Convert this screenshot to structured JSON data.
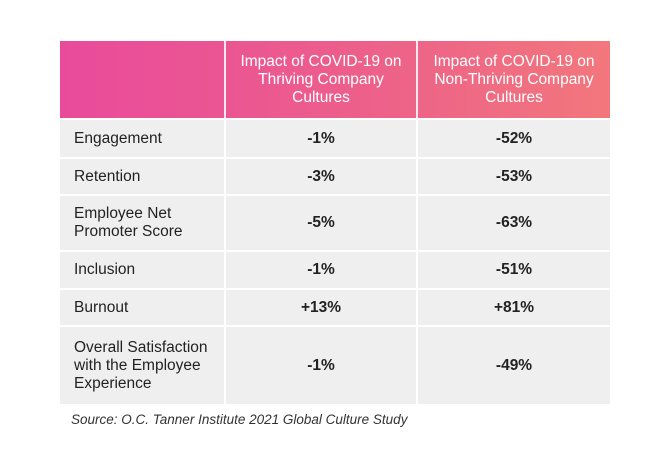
{
  "chart_data": {
    "type": "table",
    "columns": [
      "",
      "Impact of COVID-19 on Thriving Company Cultures",
      "Impact of COVID-19 on Non-Thriving Company Cultures"
    ],
    "rows": [
      {
        "label": "Engagement",
        "thriving": "-1%",
        "non_thriving": "-52%"
      },
      {
        "label": "Retention",
        "thriving": "-3%",
        "non_thriving": "-53%"
      },
      {
        "label": "Employee Net Promoter Score",
        "thriving": "-5%",
        "non_thriving": "-63%"
      },
      {
        "label": "Inclusion",
        "thriving": "-1%",
        "non_thriving": "-51%"
      },
      {
        "label": "Burnout",
        "thriving": "+13%",
        "non_thriving": "+81%"
      },
      {
        "label": "Overall Satisfaction with the Employee Experience",
        "thriving": "-1%",
        "non_thriving": "-49%"
      }
    ],
    "header_colors": [
      "#e94b9b",
      "#f2777c"
    ],
    "row_background": "#efefef"
  },
  "source": "Source: O.C. Tanner Institute 2021 Global Culture Study"
}
